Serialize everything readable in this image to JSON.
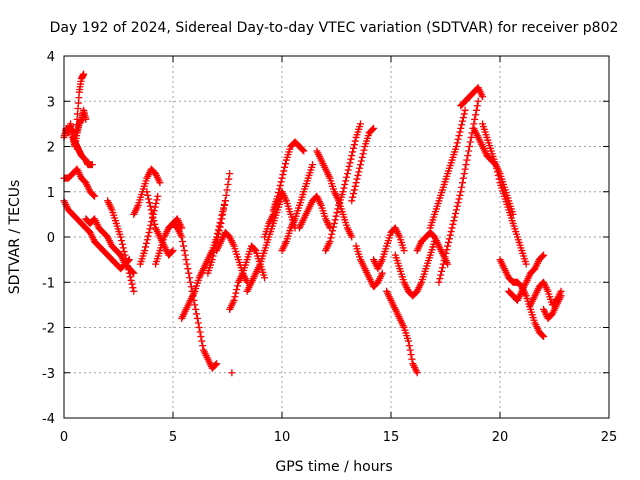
{
  "chart_data": {
    "type": "scatter",
    "title": "Day 192 of 2024, Sidereal Day-to-day VTEC variation (SDTVAR) for receiver p802",
    "xlabel": "GPS time / hours",
    "ylabel": "SDTVAR / TECUs",
    "xlim": [
      0,
      25
    ],
    "ylim": [
      -4,
      4
    ],
    "xticks": [
      0,
      5,
      10,
      15,
      20,
      25
    ],
    "yticks": [
      -4,
      -3,
      -2,
      -1,
      0,
      1,
      2,
      3,
      4
    ],
    "grid": true,
    "marker": "+",
    "series": [
      {
        "name": "SDTVAR",
        "color": "#ff0000",
        "tracks": [
          {
            "x": [
              0.0,
              0.1,
              0.2,
              0.3,
              0.4,
              0.5,
              0.6,
              0.7,
              0.8,
              0.9
            ],
            "y": [
              2.2,
              2.4,
              2.3,
              2.5,
              2.2,
              2.0,
              2.6,
              3.2,
              3.5,
              3.6
            ]
          },
          {
            "x": [
              0.5,
              0.6,
              0.7,
              0.8,
              0.9,
              1.0
            ],
            "y": [
              2.0,
              2.3,
              2.5,
              2.6,
              2.8,
              2.6
            ]
          },
          {
            "x": [
              0.3,
              0.4,
              0.5,
              0.6,
              0.7,
              0.8,
              1.0,
              1.1,
              1.3
            ],
            "y": [
              2.4,
              2.3,
              2.1,
              2.0,
              1.9,
              1.8,
              1.7,
              1.6,
              1.6
            ]
          },
          {
            "x": [
              0.0,
              0.2,
              0.4,
              0.6,
              0.8,
              1.0,
              1.2,
              1.4
            ],
            "y": [
              1.3,
              1.3,
              1.4,
              1.5,
              1.3,
              1.2,
              1.0,
              0.9
            ]
          },
          {
            "x": [
              0.0,
              0.2,
              0.4,
              0.6,
              0.8,
              1.0,
              1.2,
              1.4,
              1.6,
              1.8,
              2.0,
              2.2,
              2.4,
              2.6,
              2.8,
              3.0
            ],
            "y": [
              0.8,
              0.6,
              0.5,
              0.4,
              0.3,
              0.2,
              0.1,
              -0.1,
              -0.2,
              -0.3,
              -0.4,
              -0.5,
              -0.6,
              -0.7,
              -0.6,
              -0.5
            ]
          },
          {
            "x": [
              1.0,
              1.2,
              1.4,
              1.6,
              1.8,
              2.0,
              2.2,
              2.4,
              2.6,
              2.8,
              3.0,
              3.2
            ],
            "y": [
              0.4,
              0.3,
              0.4,
              0.2,
              0.1,
              0.0,
              -0.2,
              -0.3,
              -0.4,
              -0.6,
              -0.7,
              -0.8
            ]
          },
          {
            "x": [
              2.0,
              2.2,
              2.4,
              2.6,
              2.8,
              3.0,
              3.2
            ],
            "y": [
              0.8,
              0.6,
              0.3,
              0.0,
              -0.4,
              -0.8,
              -1.2
            ]
          },
          {
            "x": [
              3.2,
              3.4,
              3.6,
              3.8,
              4.0,
              4.2,
              4.4
            ],
            "y": [
              0.5,
              0.7,
              1.0,
              1.3,
              1.5,
              1.4,
              1.2
            ]
          },
          {
            "x": [
              3.8,
              4.0,
              4.2,
              4.4,
              4.6,
              4.8,
              5.0
            ],
            "y": [
              1.0,
              0.6,
              0.2,
              0.0,
              -0.2,
              -0.4,
              -0.3
            ]
          },
          {
            "x": [
              3.5,
              3.7,
              3.9,
              4.1,
              4.3
            ],
            "y": [
              -0.6,
              -0.3,
              0.1,
              0.5,
              0.9
            ]
          },
          {
            "x": [
              4.2,
              4.4,
              4.6,
              4.8,
              5.0,
              5.2,
              5.4
            ],
            "y": [
              -0.6,
              -0.3,
              0.0,
              0.2,
              0.3,
              0.4,
              0.2
            ]
          },
          {
            "x": [
              5.0,
              5.2,
              5.4,
              5.6,
              5.8,
              6.0,
              6.2,
              6.4,
              6.6,
              6.8,
              7.0
            ],
            "y": [
              0.3,
              0.2,
              0.0,
              -0.5,
              -1.0,
              -1.5,
              -2.0,
              -2.5,
              -2.7,
              -2.9,
              -2.8
            ]
          },
          {
            "x": [
              5.4,
              5.6,
              5.8,
              6.0,
              6.2,
              6.4,
              6.6,
              6.8,
              7.0,
              7.2,
              7.4
            ],
            "y": [
              -1.8,
              -1.6,
              -1.4,
              -1.2,
              -0.9,
              -0.7,
              -0.5,
              -0.3,
              0.0,
              0.4,
              0.8
            ]
          },
          {
            "x": [
              6.6,
              6.8,
              7.0,
              7.2,
              7.4,
              7.6
            ],
            "y": [
              -0.8,
              -0.5,
              -0.1,
              0.3,
              0.8,
              1.4
            ]
          },
          {
            "x": [
              7.0,
              7.2,
              7.4,
              7.6,
              7.8,
              8.0,
              8.2,
              8.4
            ],
            "y": [
              -0.3,
              -0.1,
              0.1,
              0.0,
              -0.2,
              -0.5,
              -0.8,
              -1.0
            ]
          },
          {
            "x": [
              7.6,
              7.8,
              8.0,
              8.2,
              8.4,
              8.6,
              8.8,
              9.0,
              9.2
            ],
            "y": [
              -1.6,
              -1.4,
              -1.0,
              -0.8,
              -0.5,
              -0.2,
              -0.3,
              -0.6,
              -0.9
            ]
          },
          {
            "x": [
              8.4,
              8.6,
              8.8,
              9.0,
              9.2,
              9.4,
              9.6,
              9.8,
              10.0
            ],
            "y": [
              -1.2,
              -1.0,
              -0.8,
              -0.6,
              -0.3,
              0.0,
              0.3,
              0.6,
              0.9
            ]
          },
          {
            "x": [
              9.2,
              9.4,
              9.6,
              9.8,
              10.0,
              10.2,
              10.4,
              10.6
            ],
            "y": [
              0.0,
              0.3,
              0.5,
              0.8,
              1.0,
              0.8,
              0.5,
              0.2
            ]
          },
          {
            "x": [
              9.6,
              9.8,
              10.0,
              10.2,
              10.4,
              10.6,
              10.8,
              11.0
            ],
            "y": [
              0.6,
              0.9,
              1.3,
              1.7,
              2.0,
              2.1,
              2.0,
              1.9
            ]
          },
          {
            "x": [
              10.0,
              10.2,
              10.4,
              10.6,
              10.8,
              11.0,
              11.2,
              11.4
            ],
            "y": [
              -0.3,
              -0.1,
              0.2,
              0.4,
              0.7,
              1.0,
              1.3,
              1.6
            ]
          },
          {
            "x": [
              10.8,
              11.0,
              11.2,
              11.4,
              11.6,
              11.8,
              12.0,
              12.2
            ],
            "y": [
              0.2,
              0.4,
              0.6,
              0.8,
              0.9,
              0.7,
              0.4,
              0.2
            ]
          },
          {
            "x": [
              11.6,
              11.8,
              12.0,
              12.2,
              12.4,
              12.6,
              12.8,
              13.0,
              13.2
            ],
            "y": [
              1.9,
              1.7,
              1.5,
              1.3,
              1.0,
              0.8,
              0.5,
              0.2,
              0.0
            ]
          },
          {
            "x": [
              12.0,
              12.2,
              12.4,
              12.6,
              12.8,
              13.0,
              13.2,
              13.4,
              13.6
            ],
            "y": [
              -0.3,
              -0.1,
              0.3,
              0.7,
              1.0,
              1.4,
              1.8,
              2.2,
              2.5
            ]
          },
          {
            "x": [
              13.2,
              13.4,
              13.6,
              13.8,
              14.0,
              14.2
            ],
            "y": [
              0.8,
              1.2,
              1.6,
              2.0,
              2.3,
              2.4
            ]
          },
          {
            "x": [
              13.4,
              13.6,
              13.8,
              14.0,
              14.2,
              14.4,
              14.6
            ],
            "y": [
              -0.2,
              -0.5,
              -0.7,
              -0.9,
              -1.1,
              -1.0,
              -0.8
            ]
          },
          {
            "x": [
              14.2,
              14.4,
              14.6,
              14.8,
              15.0,
              15.2,
              15.4,
              15.6
            ],
            "y": [
              -0.5,
              -0.7,
              -0.5,
              -0.2,
              0.1,
              0.2,
              0.0,
              -0.3
            ]
          },
          {
            "x": [
              14.8,
              15.0,
              15.2,
              15.4,
              15.6,
              15.8,
              16.0,
              16.2
            ],
            "y": [
              -1.2,
              -1.4,
              -1.6,
              -1.8,
              -2.0,
              -2.3,
              -2.8,
              -3.0
            ]
          },
          {
            "x": [
              15.2,
              15.4,
              15.6,
              15.8,
              16.0,
              16.2,
              16.4,
              16.6,
              16.8,
              17.0
            ],
            "y": [
              -0.4,
              -0.7,
              -1.0,
              -1.2,
              -1.3,
              -1.2,
              -1.0,
              -0.7,
              -0.4,
              -0.1
            ]
          },
          {
            "x": [
              16.2,
              16.4,
              16.6,
              16.8,
              17.0,
              17.2,
              17.4,
              17.6
            ],
            "y": [
              -0.3,
              -0.1,
              0.0,
              0.1,
              0.0,
              -0.2,
              -0.4,
              -0.6
            ]
          },
          {
            "x": [
              16.8,
              17.0,
              17.2,
              17.4,
              17.6,
              17.8,
              18.0,
              18.2,
              18.4
            ],
            "y": [
              0.2,
              0.5,
              0.8,
              1.1,
              1.4,
              1.7,
              2.0,
              2.4,
              2.8
            ]
          },
          {
            "x": [
              17.2,
              17.4,
              17.6,
              17.8,
              18.0,
              18.2,
              18.4,
              18.6,
              18.8,
              19.0
            ],
            "y": [
              -1.0,
              -0.6,
              -0.2,
              0.2,
              0.6,
              1.0,
              1.5,
              2.0,
              2.5,
              3.0
            ]
          },
          {
            "x": [
              18.2,
              18.4,
              18.6,
              18.8,
              19.0,
              19.2
            ],
            "y": [
              2.9,
              3.0,
              3.1,
              3.2,
              3.3,
              3.1
            ]
          },
          {
            "x": [
              18.8,
              19.0,
              19.2,
              19.4,
              19.6,
              19.8,
              20.0,
              20.2,
              20.4,
              20.6
            ],
            "y": [
              2.4,
              2.2,
              2.0,
              1.8,
              1.7,
              1.6,
              1.4,
              1.1,
              0.8,
              0.5
            ]
          },
          {
            "x": [
              19.2,
              19.4,
              19.6,
              19.8,
              20.0,
              20.2,
              20.4,
              20.6,
              20.8,
              21.0,
              21.2
            ],
            "y": [
              2.5,
              2.2,
              1.9,
              1.6,
              1.2,
              0.9,
              0.6,
              0.3,
              0.0,
              -0.3,
              -0.6
            ]
          },
          {
            "x": [
              20.0,
              20.2,
              20.4,
              20.6,
              20.8,
              21.0,
              21.2,
              21.4,
              21.6,
              21.8,
              22.0
            ],
            "y": [
              -0.5,
              -0.7,
              -0.9,
              -1.0,
              -1.0,
              -1.1,
              -1.3,
              -1.6,
              -1.9,
              -2.1,
              -2.2
            ]
          },
          {
            "x": [
              20.4,
              20.6,
              20.8,
              21.0,
              21.2,
              21.4,
              21.6,
              21.8,
              22.0
            ],
            "y": [
              -1.2,
              -1.3,
              -1.4,
              -1.2,
              -1.0,
              -0.8,
              -0.7,
              -0.5,
              -0.4
            ]
          },
          {
            "x": [
              21.4,
              21.6,
              21.8,
              22.0,
              22.2,
              22.4,
              22.6,
              22.8
            ],
            "y": [
              -1.5,
              -1.3,
              -1.1,
              -1.0,
              -1.2,
              -1.5,
              -1.4,
              -1.2
            ]
          },
          {
            "x": [
              22.0,
              22.2,
              22.4,
              22.6,
              22.8
            ],
            "y": [
              -1.6,
              -1.8,
              -1.7,
              -1.5,
              -1.3
            ]
          },
          {
            "x": [
              7.7
            ],
            "y": [
              -3.0
            ]
          }
        ]
      }
    ]
  }
}
